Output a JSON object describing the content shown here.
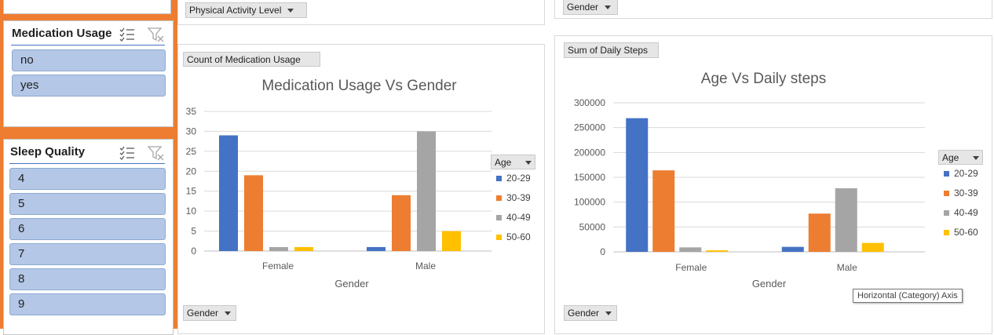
{
  "colors": {
    "accent_orange": "#ee7d31",
    "slicer_item": "#b4c7e7",
    "series": [
      "#4472c4",
      "#ed7d31",
      "#a5a5a5",
      "#ffc000"
    ]
  },
  "top_buttons": {
    "physical_activity": "Physical Activity Level",
    "gender_top_right": "Gender"
  },
  "slicers": {
    "medication": {
      "title": "Medication Usage",
      "items": [
        "no",
        "yes"
      ],
      "multiselect_icon": "multi-select-icon",
      "clear_filter_icon": "clear-filter-icon"
    },
    "sleep": {
      "title": "Sleep Quality",
      "items": [
        "4",
        "5",
        "6",
        "7",
        "8",
        "9"
      ],
      "multiselect_icon": "multi-select-icon",
      "clear_filter_icon": "clear-filter-icon"
    }
  },
  "chart_left": {
    "value_button": "Count of Medication Usage",
    "axis_button": "Gender",
    "legend_button": "Age"
  },
  "chart_right": {
    "value_button": "Sum of Daily  Steps",
    "axis_button": "Gender",
    "legend_button": "Age",
    "tooltip": "Horizontal (Category) Axis"
  },
  "chart_data": [
    {
      "type": "bar",
      "title": "Medication Usage Vs Gender",
      "xlabel": "Gender",
      "ylabel": "",
      "categories": [
        "Female",
        "Male"
      ],
      "series": [
        {
          "name": "20-29",
          "values": [
            29,
            1
          ]
        },
        {
          "name": "30-39",
          "values": [
            19,
            14
          ]
        },
        {
          "name": "40-49",
          "values": [
            1,
            30
          ]
        },
        {
          "name": "50-60",
          "values": [
            1,
            5
          ]
        }
      ],
      "ylim": [
        0,
        35
      ],
      "yticks": [
        "0",
        "5",
        "10",
        "15",
        "20",
        "25",
        "30",
        "35"
      ],
      "grid": true,
      "legend_position": "right",
      "legend_title": "Age"
    },
    {
      "type": "bar",
      "title": "Age Vs Daily steps",
      "xlabel": "Gender",
      "ylabel": "",
      "categories": [
        "Female",
        "Male"
      ],
      "series": [
        {
          "name": "20-29",
          "values": [
            269000,
            10000
          ]
        },
        {
          "name": "30-39",
          "values": [
            164000,
            77000
          ]
        },
        {
          "name": "40-49",
          "values": [
            9000,
            128000
          ]
        },
        {
          "name": "50-60",
          "values": [
            3000,
            18000
          ]
        }
      ],
      "ylim": [
        0,
        300000
      ],
      "yticks": [
        "0",
        "50000",
        "100000",
        "150000",
        "200000",
        "250000",
        "300000"
      ],
      "grid": true,
      "legend_position": "right",
      "legend_title": "Age"
    }
  ]
}
